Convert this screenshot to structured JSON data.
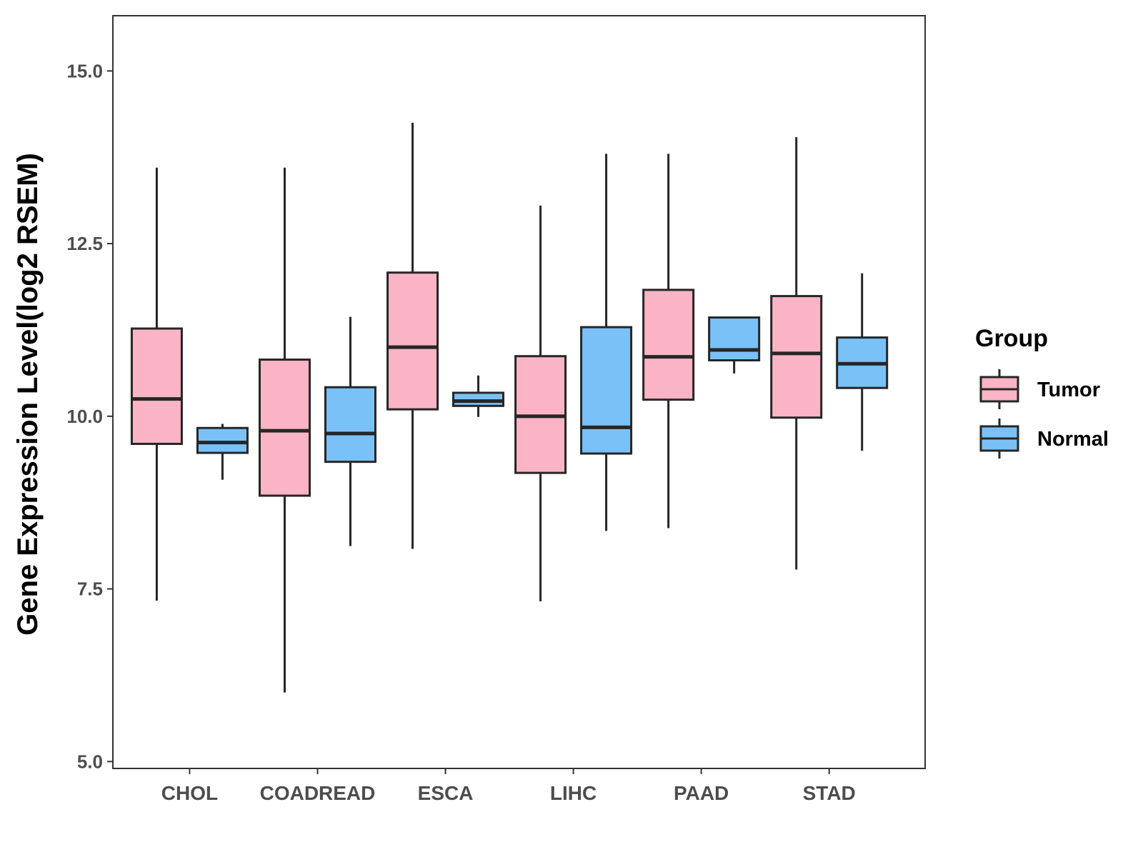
{
  "chart_data": {
    "type": "boxplot",
    "title": "",
    "xlabel": "",
    "ylabel": "Gene Expression Level(log2 RSEM)",
    "ylim": [
      4.9,
      15.8
    ],
    "yticks": [
      5.0,
      7.5,
      10.0,
      12.5,
      15.0
    ],
    "ytick_labels": [
      "5.0",
      "7.5",
      "10.0",
      "12.5",
      "15.0"
    ],
    "categories": [
      "CHOL",
      "COADREAD",
      "ESCA",
      "LIHC",
      "PAAD",
      "STAD"
    ],
    "legend": {
      "title": "Group",
      "position": "right",
      "entries": [
        {
          "name": "Tumor",
          "color": "#fbb4c5"
        },
        {
          "name": "Normal",
          "color": "#7ac1f8"
        }
      ]
    },
    "series": [
      {
        "name": "Tumor",
        "color": "#fbb4c5",
        "boxes": [
          {
            "min": 7.33,
            "q1": 9.6,
            "median": 10.25,
            "q3": 11.27,
            "max": 13.6
          },
          {
            "min": 6.0,
            "q1": 8.85,
            "median": 9.79,
            "q3": 10.82,
            "max": 13.6
          },
          {
            "min": 8.08,
            "q1": 10.1,
            "median": 11.0,
            "q3": 12.08,
            "max": 14.25
          },
          {
            "min": 7.32,
            "q1": 9.18,
            "median": 10.0,
            "q3": 10.87,
            "max": 13.05
          },
          {
            "min": 8.38,
            "q1": 10.24,
            "median": 10.86,
            "q3": 11.83,
            "max": 13.8
          },
          {
            "min": 7.78,
            "q1": 9.98,
            "median": 10.91,
            "q3": 11.74,
            "max": 14.04
          }
        ]
      },
      {
        "name": "Normal",
        "color": "#7ac1f8",
        "boxes": [
          {
            "min": 9.08,
            "q1": 9.47,
            "median": 9.62,
            "q3": 9.83,
            "max": 9.89
          },
          {
            "min": 8.12,
            "q1": 9.34,
            "median": 9.75,
            "q3": 10.42,
            "max": 11.44
          },
          {
            "min": 9.99,
            "q1": 10.15,
            "median": 10.22,
            "q3": 10.34,
            "max": 10.59
          },
          {
            "min": 8.34,
            "q1": 9.46,
            "median": 9.84,
            "q3": 11.29,
            "max": 13.8
          },
          {
            "min": 10.62,
            "q1": 10.81,
            "median": 10.96,
            "q3": 11.43,
            "max": 11.43
          },
          {
            "min": 9.5,
            "q1": 10.41,
            "median": 10.76,
            "q3": 11.14,
            "max": 12.07
          }
        ]
      }
    ]
  }
}
